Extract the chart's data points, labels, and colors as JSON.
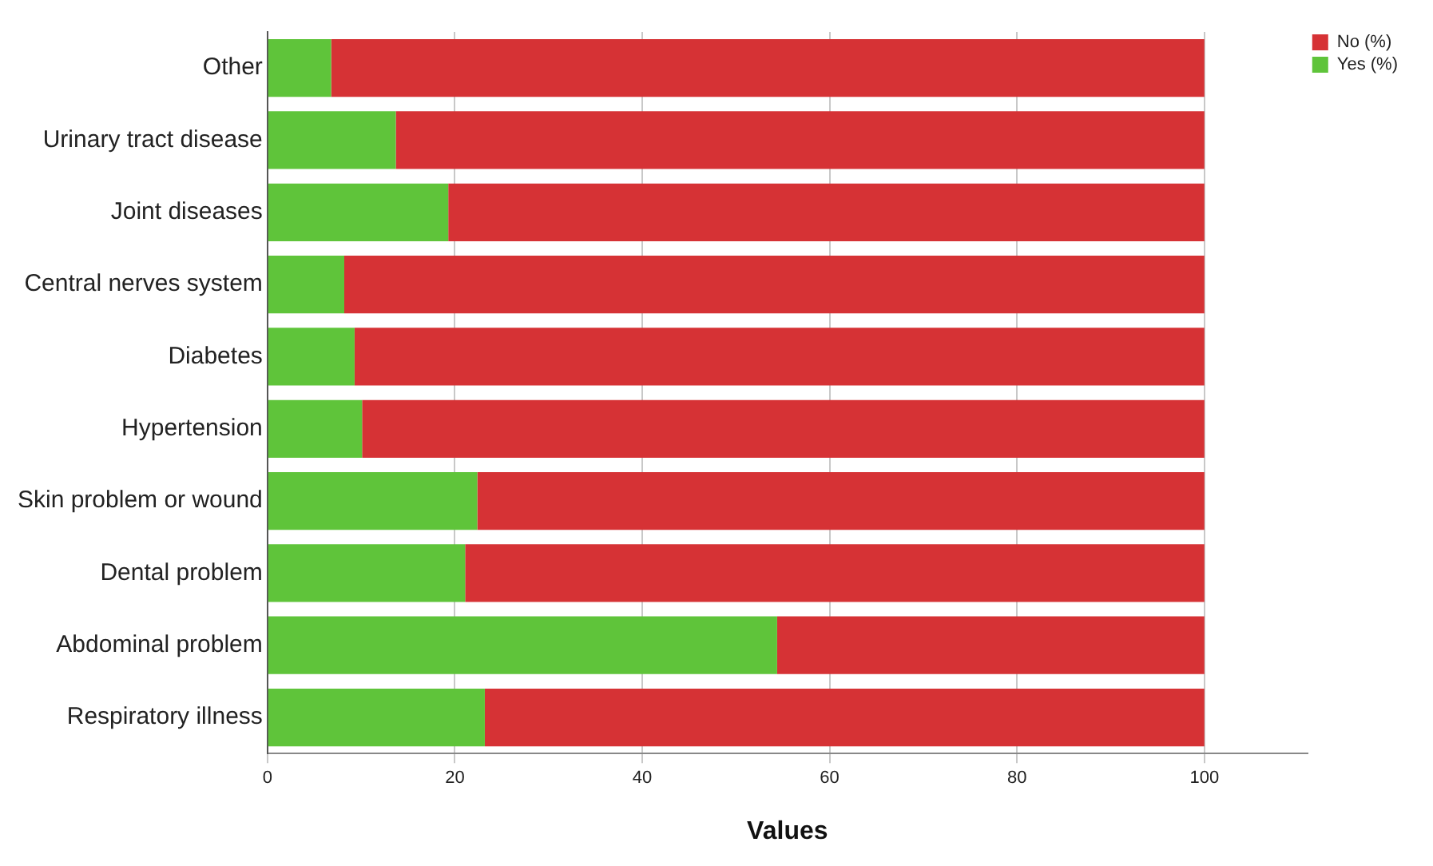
{
  "chart_data": {
    "type": "bar",
    "orientation": "horizontal",
    "stacked": true,
    "xlabel": "Values",
    "categories": [
      "Other",
      "Urinary tract disease",
      "Joint diseases",
      "Central nerves system",
      "Diabetes",
      "Hypertension",
      "Skin problem or wound",
      "Dental problem",
      "Abdominal problem",
      "Respiratory illness"
    ],
    "series": [
      {
        "name": "Yes (%)",
        "color": "#5fc43a",
        "values": [
          6.8,
          13.7,
          19.3,
          8.2,
          9.3,
          10.1,
          22.4,
          21.1,
          54.4,
          23.2
        ]
      },
      {
        "name": "No (%)",
        "color": "#d63235",
        "values": [
          93.2,
          86.3,
          80.7,
          91.8,
          90.7,
          89.9,
          77.6,
          78.9,
          45.6,
          76.8
        ]
      }
    ],
    "xlim": [
      0,
      111
    ],
    "xticks": [
      0,
      20,
      40,
      60,
      80,
      100
    ],
    "grid": "x",
    "legend": "top right"
  }
}
